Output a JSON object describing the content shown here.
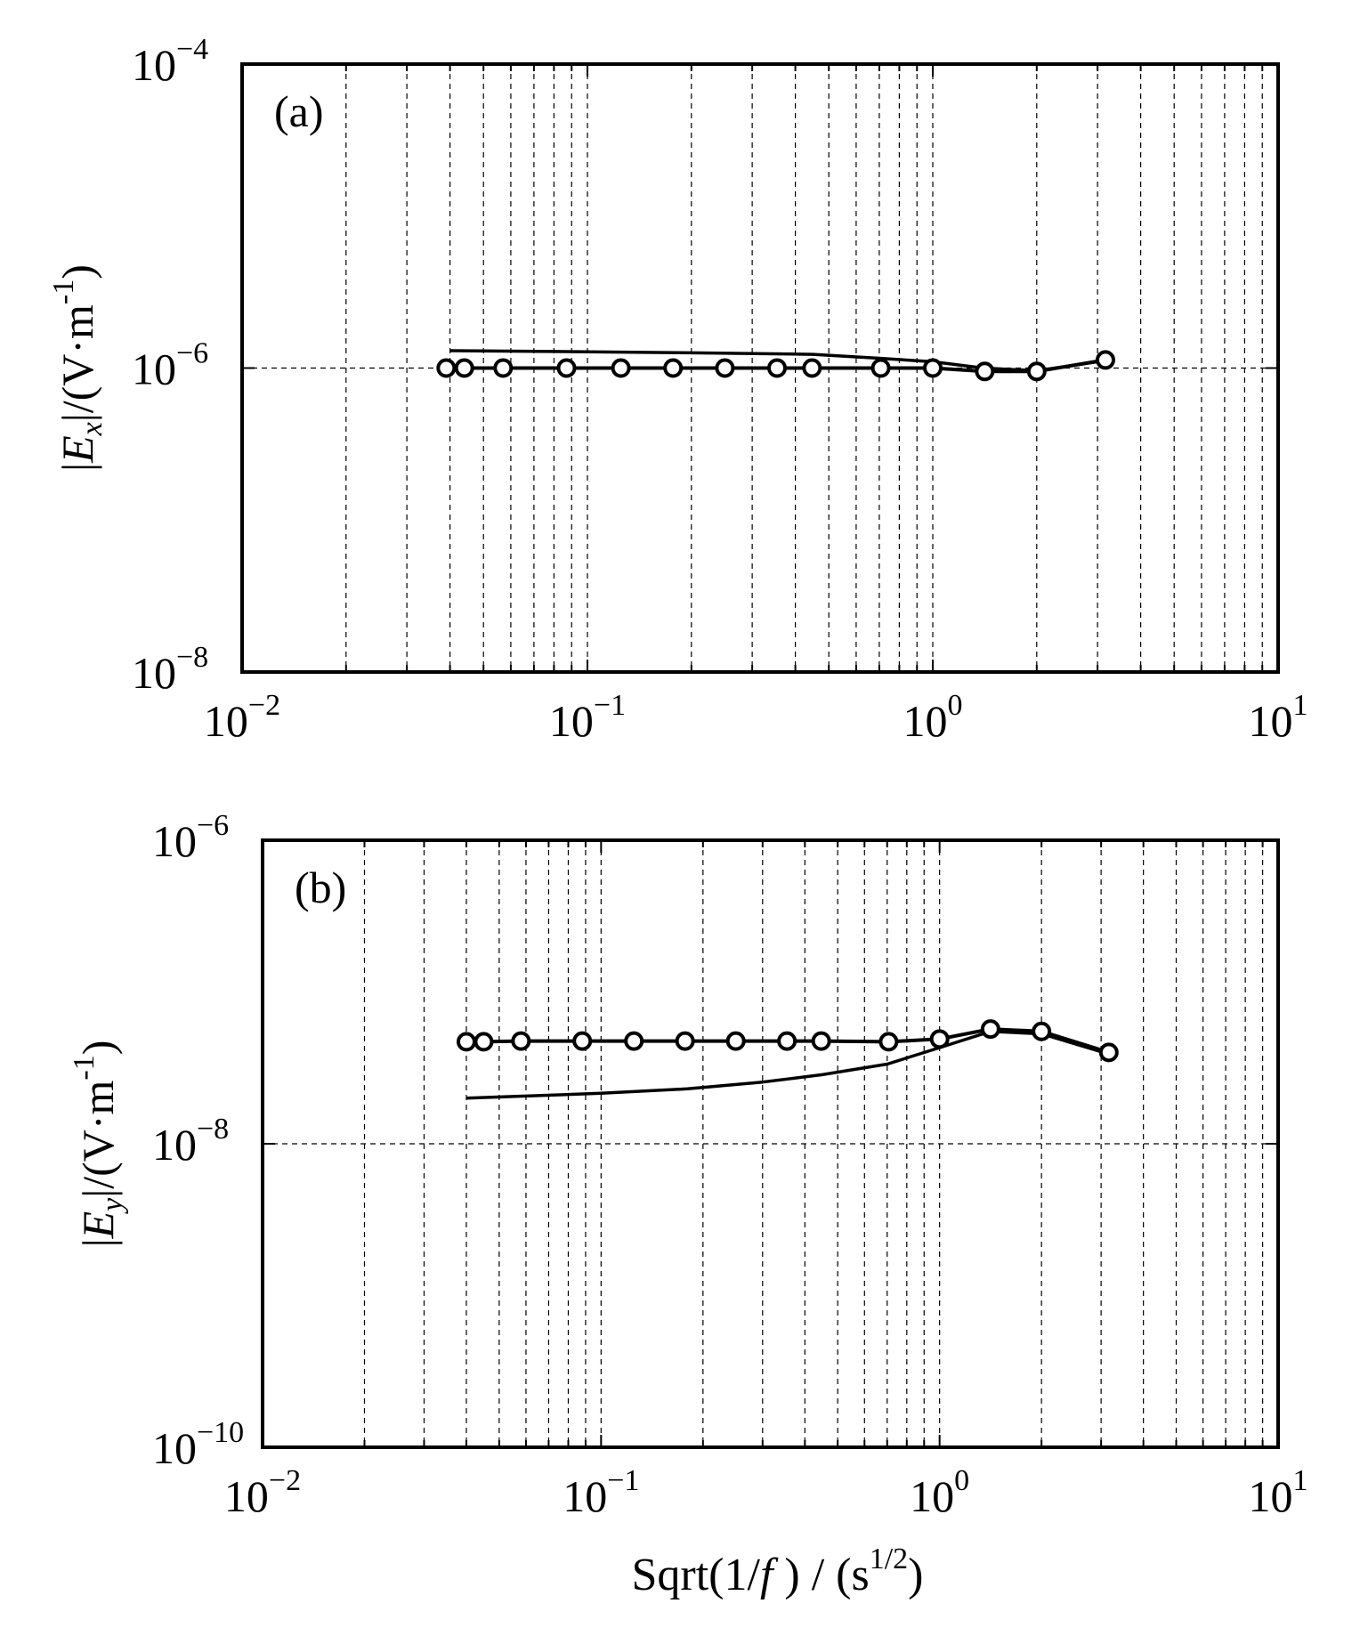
{
  "chart_data": [
    {
      "type": "line",
      "panel_label": "(a)",
      "x_scale": "log",
      "y_scale": "log",
      "xlim": [
        0.01,
        10
      ],
      "ylim": [
        1e-08,
        0.0001
      ],
      "x_ticks": [
        {
          "value": 0.01,
          "base": "10",
          "exp": "−2"
        },
        {
          "value": 0.1,
          "base": "10",
          "exp": "−1"
        },
        {
          "value": 1,
          "base": "10",
          "exp": "0"
        },
        {
          "value": 10,
          "base": "10",
          "exp": "1"
        }
      ],
      "y_ticks": [
        {
          "value": 1e-08,
          "base": "10",
          "exp": "−8"
        },
        {
          "value": 1e-06,
          "base": "10",
          "exp": "−6"
        },
        {
          "value": 0.0001,
          "base": "10",
          "exp": "−4"
        }
      ],
      "ylabel": {
        "pre": "|",
        "var": "E",
        "sub": "x",
        "mid": "|/(V·m",
        "sup": "-1",
        "post": ")"
      },
      "grid": true,
      "series": [
        {
          "name": "solid-line",
          "marker": "none",
          "x": [
            0.04,
            0.1,
            0.2,
            0.45,
            0.7,
            1.0,
            1.4,
            2.0,
            3.16
          ],
          "y": [
            1.3e-06,
            1.28e-06,
            1.26e-06,
            1.23e-06,
            1.16e-06,
            1.1e-06,
            1e-06,
            9.6e-07,
            1.12e-06
          ]
        },
        {
          "name": "circle-line",
          "marker": "circle",
          "x": [
            0.039,
            0.044,
            0.057,
            0.087,
            0.125,
            0.177,
            0.25,
            0.354,
            0.447,
            0.707,
            1.0,
            1.414,
            2.0,
            3.162
          ],
          "y": [
            1e-06,
            1e-06,
            1e-06,
            1e-06,
            1e-06,
            1e-06,
            1e-06,
            1e-06,
            1e-06,
            1e-06,
            1e-06,
            9.5e-07,
            9.5e-07,
            1.13e-06
          ]
        }
      ]
    },
    {
      "type": "line",
      "panel_label": "(b)",
      "x_scale": "log",
      "y_scale": "log",
      "xlim": [
        0.01,
        10
      ],
      "ylim": [
        1e-10,
        1e-06
      ],
      "x_ticks": [
        {
          "value": 0.01,
          "base": "10",
          "exp": "−2"
        },
        {
          "value": 0.1,
          "base": "10",
          "exp": "−1"
        },
        {
          "value": 1,
          "base": "10",
          "exp": "0"
        },
        {
          "value": 10,
          "base": "10",
          "exp": "1"
        }
      ],
      "y_ticks": [
        {
          "value": 1e-10,
          "base": "10",
          "exp": "−10"
        },
        {
          "value": 1e-08,
          "base": "10",
          "exp": "−8"
        },
        {
          "value": 1e-06,
          "base": "10",
          "exp": "−6"
        }
      ],
      "ylabel": {
        "pre": "|",
        "var": "E",
        "sub": "y",
        "mid": "|/(V·m",
        "sup": "-1",
        "post": ")"
      },
      "xlabel": {
        "pre": "Sqrt(1/",
        "var": "f",
        "mid": " ) / (s",
        "sup": "1/2",
        "post": ")"
      },
      "grid": true,
      "series": [
        {
          "name": "solid-line",
          "marker": "none",
          "x": [
            0.04,
            0.1,
            0.18,
            0.3,
            0.45,
            0.7,
            1.0,
            1.414,
            2.0,
            3.162
          ],
          "y": [
            2e-08,
            2.15e-08,
            2.3e-08,
            2.55e-08,
            2.85e-08,
            3.35e-08,
            4.3e-08,
            5.5e-08,
            5.3e-08,
            3.9e-08
          ]
        },
        {
          "name": "circle-line",
          "marker": "circle",
          "x": [
            0.04,
            0.045,
            0.058,
            0.088,
            0.125,
            0.177,
            0.25,
            0.354,
            0.447,
            0.707,
            1.0,
            1.414,
            2.0,
            3.162
          ],
          "y": [
            4.7e-08,
            4.7e-08,
            4.75e-08,
            4.75e-08,
            4.75e-08,
            4.75e-08,
            4.75e-08,
            4.75e-08,
            4.75e-08,
            4.7e-08,
            4.9e-08,
            5.7e-08,
            5.5e-08,
            4e-08
          ]
        }
      ]
    }
  ]
}
